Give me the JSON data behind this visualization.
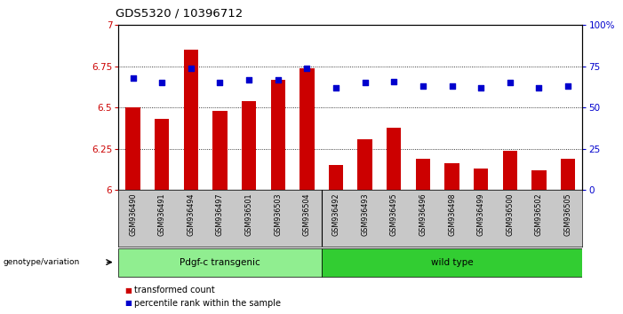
{
  "title": "GDS5320 / 10396712",
  "samples": [
    "GSM936490",
    "GSM936491",
    "GSM936494",
    "GSM936497",
    "GSM936501",
    "GSM936503",
    "GSM936504",
    "GSM936492",
    "GSM936493",
    "GSM936495",
    "GSM936496",
    "GSM936498",
    "GSM936499",
    "GSM936500",
    "GSM936502",
    "GSM936505"
  ],
  "transformed_count": [
    6.5,
    6.43,
    6.85,
    6.48,
    6.54,
    6.67,
    6.74,
    6.15,
    6.31,
    6.38,
    6.19,
    6.16,
    6.13,
    6.24,
    6.12,
    6.19
  ],
  "percentile_rank": [
    68,
    65,
    74,
    65,
    67,
    67,
    74,
    62,
    65,
    66,
    63,
    63,
    62,
    65,
    62,
    63
  ],
  "groups": [
    {
      "label": "Pdgf-c transgenic",
      "start": 0,
      "end": 7,
      "color": "#90EE90"
    },
    {
      "label": "wild type",
      "start": 7,
      "end": 16,
      "color": "#32CD32"
    }
  ],
  "ylim_left": [
    6.0,
    7.0
  ],
  "ylim_right": [
    0,
    100
  ],
  "bar_color": "#CC0000",
  "dot_color": "#0000CD",
  "bg_color": "#FFFFFF",
  "tick_area_color": "#C8C8C8",
  "legend_items": [
    {
      "label": "transformed count",
      "color": "#CC0000"
    },
    {
      "label": "percentile rank within the sample",
      "color": "#0000CD"
    }
  ]
}
